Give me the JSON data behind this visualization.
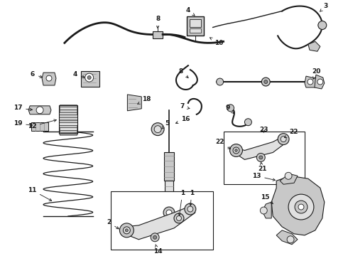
{
  "background_color": "#ffffff",
  "fig_width": 4.9,
  "fig_height": 3.6,
  "dpi": 100,
  "line_color": "#1a1a1a",
  "gray_fill": "#c8c8c8",
  "gray_dark": "#888888",
  "gray_light": "#e0e0e0"
}
